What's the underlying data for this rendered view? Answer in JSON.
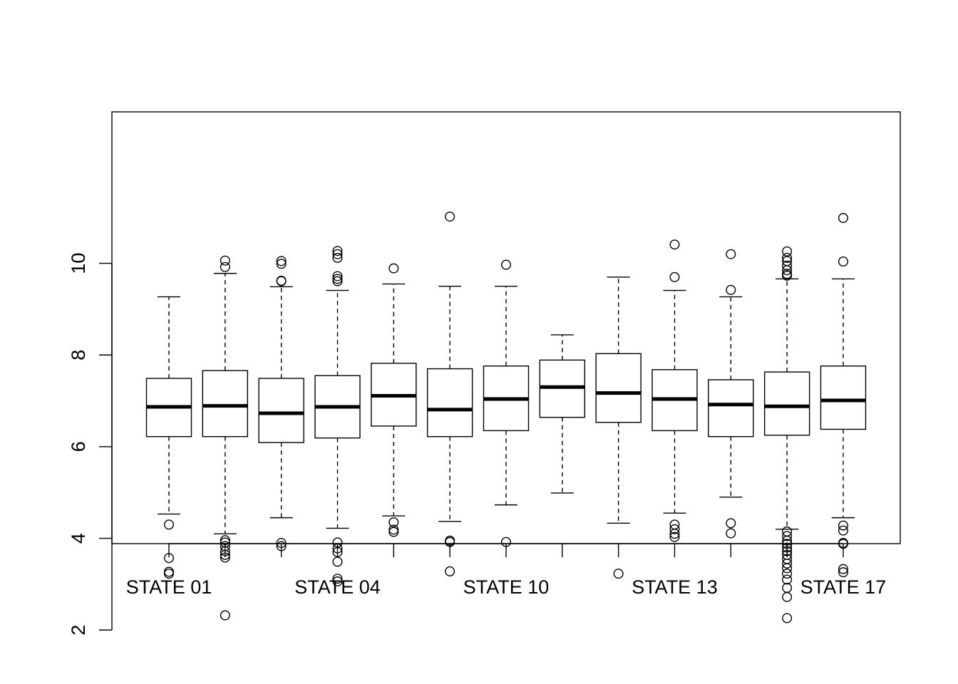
{
  "chart_data": {
    "type": "boxplot",
    "title": "",
    "xlabel": "",
    "ylabel": "",
    "ylim": [
      1.9,
      11.35
    ],
    "y_ticks": [
      2,
      4,
      6,
      8,
      10
    ],
    "x_tick_labels": [
      "STATE 01",
      "",
      "",
      "STATE 04",
      "",
      "",
      "STATE 10",
      "",
      "",
      "STATE 13",
      "",
      "",
      "STATE 17"
    ],
    "grid": false,
    "legend": "none",
    "boxes": [
      {
        "q1": 6.22,
        "median": 6.87,
        "q3": 7.49,
        "whisker_low": 4.53,
        "whisker_high": 9.27,
        "outliers": [
          4.3,
          3.57,
          3.27,
          3.23
        ]
      },
      {
        "q1": 6.22,
        "median": 6.89,
        "q3": 7.66,
        "whisker_low": 4.1,
        "whisker_high": 9.78,
        "outliers": [
          9.92,
          10.06,
          3.96,
          3.91,
          3.83,
          3.72,
          3.64,
          3.58,
          2.32
        ]
      },
      {
        "q1": 6.09,
        "median": 6.73,
        "q3": 7.49,
        "whisker_low": 4.45,
        "whisker_high": 9.49,
        "outliers": [
          9.61,
          9.62,
          9.99,
          10.05,
          3.9,
          3.83
        ]
      },
      {
        "q1": 6.19,
        "median": 6.87,
        "q3": 7.55,
        "whisker_low": 4.22,
        "whisker_high": 9.41,
        "outliers": [
          9.61,
          9.66,
          9.72,
          10.12,
          10.2,
          10.27,
          3.91,
          3.78,
          3.7,
          3.49,
          3.12,
          3.06
        ]
      },
      {
        "q1": 6.45,
        "median": 7.11,
        "q3": 7.82,
        "whisker_low": 4.49,
        "whisker_high": 9.55,
        "outliers": [
          9.89,
          4.35,
          4.19,
          4.14
        ]
      },
      {
        "q1": 6.22,
        "median": 6.81,
        "q3": 7.7,
        "whisker_low": 4.37,
        "whisker_high": 9.5,
        "outliers": [
          11.02,
          3.95,
          3.92,
          3.28
        ]
      },
      {
        "q1": 6.35,
        "median": 7.04,
        "q3": 7.76,
        "whisker_low": 4.73,
        "whisker_high": 9.5,
        "outliers": [
          9.97,
          3.92
        ]
      },
      {
        "q1": 6.64,
        "median": 7.3,
        "q3": 7.89,
        "whisker_low": 4.99,
        "whisker_high": 8.44,
        "outliers": []
      },
      {
        "q1": 6.53,
        "median": 7.17,
        "q3": 8.03,
        "whisker_low": 4.33,
        "whisker_high": 9.7,
        "outliers": [
          3.23
        ]
      },
      {
        "q1": 6.35,
        "median": 7.04,
        "q3": 7.68,
        "whisker_low": 4.55,
        "whisker_high": 9.41,
        "outliers": [
          10.41,
          9.7,
          4.3,
          4.2,
          4.1,
          4.03
        ]
      },
      {
        "q1": 6.22,
        "median": 6.92,
        "q3": 7.46,
        "whisker_low": 4.9,
        "whisker_high": 9.27,
        "outliers": [
          10.2,
          9.42,
          4.33,
          4.11
        ]
      },
      {
        "q1": 6.25,
        "median": 6.88,
        "q3": 7.63,
        "whisker_low": 4.2,
        "whisker_high": 9.66,
        "outliers": [
          9.73,
          9.77,
          9.85,
          9.95,
          10.05,
          10.12,
          10.26,
          4.15,
          4.05,
          3.95,
          3.88,
          3.8,
          3.72,
          3.64,
          3.55,
          3.45,
          3.35,
          3.23,
          3.1,
          2.92,
          2.72,
          2.26
        ]
      },
      {
        "q1": 6.38,
        "median": 7.01,
        "q3": 7.76,
        "whisker_low": 4.45,
        "whisker_high": 9.66,
        "outliers": [
          10.04,
          10.99,
          4.28,
          4.17,
          3.9,
          3.88,
          3.33,
          3.26
        ]
      }
    ]
  }
}
